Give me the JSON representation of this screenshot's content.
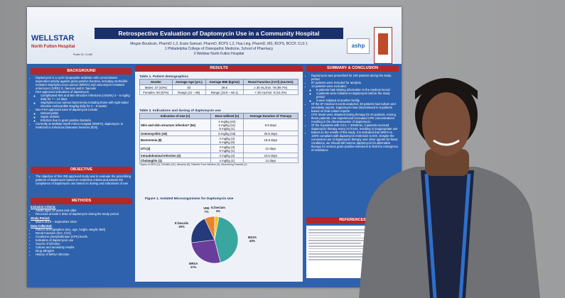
{
  "header": {
    "title": "Retrospective Evaluation of Daptomycin Use in a Community Hospital",
    "authors": "Megan Boudcuin, PharmD 1,2, Essie Samuel, PharmD, BCPS 1,2, Hua Ling, PharmD, MS, BCPS, BCCP, CLS 1",
    "affiliation1": "1 Philadelphia College of Osteopathic Medicine, School of Pharmacy",
    "affiliation2": "2 Wellstar North Fulton Hospital",
    "poster_id": "Poster ID: 11-069",
    "logo": "WELLSTAR",
    "logo_sub": "North Fulton Hospital",
    "ashp": "ashp"
  },
  "background": {
    "heading": "BACKGROUND",
    "items": [
      "Daptomycin is a cyclic lipopeptide antibiotic with concentration dependent activity against gram-positive bacteria, including methicillin-resistant Staphylococcus aureus (MRSA) and vancomycin-resistant enterococci (VRE): E. faecium and E. faecalis",
      {
        "text": "FDA approved indications of daptomycin",
        "sub": [
          "Complicated skin and skin structure infections (cSSSIs) 4 – 6 mg/kg daily for 7 – 14 days",
          "Staphylococcus aureus bacteremia including those with right-sided infective endocarditis 6mg/kg daily for 2 – 6 weeks"
        ]
      },
      {
        "text": "Non-FDA approved uses of daptomycin include",
        "sub": [
          "Osteomyelitis",
          "Septic arthritis",
          "Infection due to gram positive bacteria"
        ]
      },
      "Currently at Wellstar North Fulton Hospital (WNFH), daptomycin is restricted to Infectious Diseases Services (IDS)"
    ]
  },
  "objective": {
    "heading": "OBJECTIVE",
    "items": [
      "The objective of this IRB approved study was to evaluate the prescribing patterns of daptomycin based on restriction criteria and assess the compliance of daptomycin use based on dosing and indications of use"
    ]
  },
  "methods": {
    "heading": "METHODS",
    "groups": [
      {
        "label": "Inclusion Criteria:",
        "items": [
          "Adults ages 18 years and older",
          "Received at least 1 dose of daptomycin during the study period"
        ]
      },
      {
        "label": "Study Period:",
        "items": [
          "March 2018 – September 2019"
        ]
      },
      {
        "label": "Data Collected:",
        "items": [
          "Patient demographics (sex, age, height, weight, BMI)",
          "Renal Function (SCr, CrCl)",
          "Creatinine phosphokinase (CPK) levels",
          "Indication of daptomycin use",
          "Source of infection",
          "Culture and sensitivity results",
          "Drug allergies",
          "History of MRSA infection"
        ]
      }
    ]
  },
  "results": {
    "heading": "RESULTS",
    "table1": {
      "caption": "Table 1. Patient demographics",
      "header": [
        "Gender",
        "Average Age (yrs.)",
        "Average BMI (kg/m2)",
        "Renal Function (CrCl) (mL/min)"
      ],
      "rows": [
        [
          "Males: 37 (43%)",
          "63",
          "29.6",
          "≥ 30 mL/min: 78 (89.7%)"
        ],
        [
          "Females: 50 (57%)",
          "Range (21 – 95)",
          "Range (19.9 – 66.1)",
          "< 30 mL/min: 9 (10.3%)"
        ]
      ]
    },
    "table2": {
      "caption": "Table 2. Indications and dosing of daptomycin use",
      "header": [
        "Indication of Use (n)",
        "Dose Utilized (n)",
        "Average Duration of Therapy"
      ],
      "rows": [
        [
          "Skin and skin structure infection* (54)",
          [
            "4 mg/kg (42)",
            "6 mg/kg (11)",
            "8 mg/kg (1)"
          ],
          "8.8 days"
        ],
        [
          "Osteomyelitis (18)",
          [
            "6 mg/kg (18)"
          ],
          "26.5 days"
        ],
        [
          "Bacteremia (8)",
          [
            "4 mg/kg (2)",
            "6 mg/kg (6)"
          ],
          "15.8 days"
        ],
        [
          "UTI (4)",
          [
            "4 mg/kg (3)",
            "6 mg/kg (1)"
          ],
          "12 days"
        ],
        [
          "Intraabdominal Infection (2)",
          [
            "4 mg/kg (2)"
          ],
          "10.5 days"
        ],
        [
          "Cholangitis (1)",
          [
            "4 mg/kg (1)"
          ],
          "14 days"
        ]
      ],
      "footnote": "*Types of SSSI (n): Cellulitis (41), Abscess (8), Diabetic Foot Infection (3), Necrotizing Fasciitis (2)"
    },
    "figure": {
      "caption": "Figure 1. Isolated Microorganisms for Daptomycin Use",
      "slices": [
        {
          "name": "E.faecium",
          "value": 3,
          "label": "3%",
          "color": "#f2c12e"
        },
        {
          "name": "MSSA",
          "value": 43,
          "label": "43%",
          "color": "#3aa6a0"
        },
        {
          "name": "MRSA",
          "value": 27,
          "label": "27%",
          "color": "#6a3d9a"
        },
        {
          "name": "E.faecalis",
          "value": 20,
          "label": "20%",
          "color": "#253a7a"
        },
        {
          "name": "VRE",
          "value": 7,
          "label": "7%",
          "color": "#e8842a"
        }
      ]
    }
  },
  "summary": {
    "heading": "SUMMARY & CONCLUSION",
    "items": [
      "Daptomycin was prescribed for 100 patients during the study period",
      "87 patients were included for analysis",
      {
        "text": "13 patients were excluded:",
        "sub": [
          "6 patients had missing information in the medical record",
          "4 patients were initiated on daptomycin before the study period",
          "3 were initiated at another facility"
        ]
      },
      "Of the 87 medical records analyzed, 40 patients had culture and sensitivity reports. Daptomycin was discontinued in 6 patients based on final culture reports",
      "CPK levels were obtained during therapy for 24 patients. Among these patients, one experienced increased CPK concentrations resulting in the discontinuation of daptomycin.",
      "Of the 9 patients with CrCL < 30ml/min, 3 patients received daptomycin therapy every 24 hours, resulting in inappropriate use",
      "Based on the results of this study, it is indicated that WNFH is 100% compliant with daptomycin restriction to IDS. Despite the convenient use of daptomycin therapy over other agents for these conditions, we should still reserve daptomycin for alternative therapy for serious gram-positive infections to limit the emergence of resistance"
    ]
  },
  "references": {
    "heading": "REFERENCES"
  }
}
